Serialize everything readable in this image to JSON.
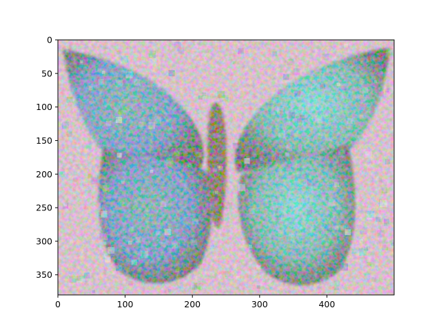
{
  "chart_data": {
    "type": "heatmap",
    "title": "",
    "xlabel": "",
    "ylabel": "",
    "image_shape": [
      380,
      500
    ],
    "xlim": [
      0,
      500
    ],
    "ylim": [
      380,
      0
    ],
    "y_inverted": true,
    "x_ticks": [
      0,
      100,
      200,
      300,
      400
    ],
    "y_ticks": [
      0,
      50,
      100,
      150,
      200,
      250,
      300,
      350
    ],
    "grid": false,
    "legend": "none",
    "image_content": "noisy, saturated rendering of a butterfly with teal-blue wings on a pastel pink-white speckled background",
    "colors": {
      "background_pink": "#e8c4d6",
      "background_white": "#f4eef2",
      "wing_teal": "#5fb7b4",
      "wing_blue": "#4f8fd0",
      "wing_dark": "#2f3a3d",
      "body_brown": "#6a3f2c",
      "accent_cyan": "#6fe8e8",
      "accent_green": "#7bd84c",
      "accent_magenta": "#c86fe0"
    }
  }
}
